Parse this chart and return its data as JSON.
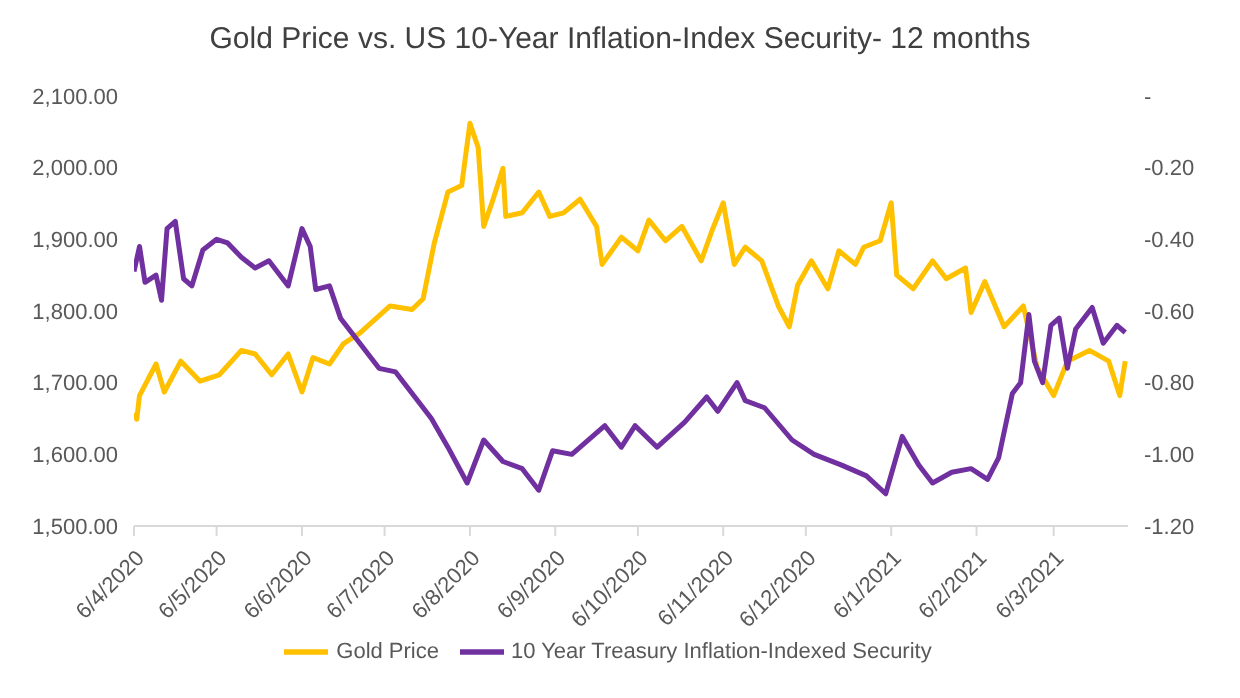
{
  "chart_data": {
    "type": "line",
    "title": "Gold Price vs. US 10-Year Inflation-Index Security- 12 months",
    "xlim": [
      "2020-04-06",
      "2021-04-02"
    ],
    "xticks": [
      {
        "value": "2020-04-06",
        "label": "6/4/2020"
      },
      {
        "value": "2020-05-06",
        "label": "6/5/2020"
      },
      {
        "value": "2020-06-06",
        "label": "6/6/2020"
      },
      {
        "value": "2020-07-06",
        "label": "6/7/2020"
      },
      {
        "value": "2020-08-06",
        "label": "6/8/2020"
      },
      {
        "value": "2020-09-06",
        "label": "6/9/2020"
      },
      {
        "value": "2020-10-06",
        "label": "6/10/2020"
      },
      {
        "value": "2020-11-06",
        "label": "6/11/2020"
      },
      {
        "value": "2020-12-06",
        "label": "6/12/2020"
      },
      {
        "value": "2021-01-06",
        "label": "6/1/2021"
      },
      {
        "value": "2021-02-06",
        "label": "6/2/2021"
      },
      {
        "value": "2021-03-06",
        "label": "6/3/2021"
      }
    ],
    "ylim": [
      1500,
      2100
    ],
    "yticks": [
      {
        "value": 1500,
        "label": "1,500.00"
      },
      {
        "value": 1600,
        "label": "1,600.00"
      },
      {
        "value": 1700,
        "label": "1,700.00"
      },
      {
        "value": 1800,
        "label": "1,800.00"
      },
      {
        "value": 1900,
        "label": "1,900.00"
      },
      {
        "value": 2000,
        "label": "2,000.00"
      },
      {
        "value": 2100,
        "label": "2,100.00"
      }
    ],
    "y2lim": [
      -1.2,
      0
    ],
    "y2ticks": [
      {
        "value": -1.2,
        "label": "-1.20"
      },
      {
        "value": -1,
        "label": "-1.00"
      },
      {
        "value": -0.8,
        "label": "-0.80"
      },
      {
        "value": -0.6,
        "label": "-0.60"
      },
      {
        "value": -0.4,
        "label": "-0.40"
      },
      {
        "value": -0.2,
        "label": "-0.20"
      },
      {
        "value": 0,
        "label": "-"
      }
    ],
    "legend": "bottom",
    "marker": "none",
    "line_style": "solid",
    "series": [
      {
        "name": "Gold Price",
        "color": "#ffc000",
        "x": [
          "2020-04-06",
          "2020-04-07",
          "2020-04-08",
          "2020-04-14",
          "2020-04-17",
          "2020-04-23",
          "2020-04-30",
          "2020-05-07",
          "2020-05-15",
          "2020-05-20",
          "2020-05-26",
          "2020-06-01",
          "2020-06-06",
          "2020-06-10",
          "2020-06-16",
          "2020-06-21",
          "2020-06-27",
          "2020-07-08",
          "2020-07-16",
          "2020-07-20",
          "2020-07-24",
          "2020-07-29",
          "2020-08-03",
          "2020-08-06",
          "2020-08-09",
          "2020-08-11",
          "2020-08-14",
          "2020-08-18",
          "2020-08-19",
          "2020-08-25",
          "2020-08-31",
          "2020-09-04",
          "2020-09-09",
          "2020-09-15",
          "2020-09-21",
          "2020-09-23",
          "2020-09-30",
          "2020-10-06",
          "2020-10-10",
          "2020-10-16",
          "2020-10-22",
          "2020-10-29",
          "2020-11-02",
          "2020-11-06",
          "2020-11-10",
          "2020-11-14",
          "2020-11-20",
          "2020-11-26",
          "2020-11-30",
          "2020-12-03",
          "2020-12-08",
          "2020-12-14",
          "2020-12-18",
          "2020-12-24",
          "2020-12-27",
          "2021-01-02",
          "2021-01-06",
          "2021-01-08",
          "2021-01-14",
          "2021-01-21",
          "2021-01-26",
          "2021-02-02",
          "2021-02-04",
          "2021-02-09",
          "2021-02-16",
          "2021-02-23",
          "2021-02-28",
          "2021-03-06",
          "2021-03-11",
          "2021-03-19",
          "2021-03-26",
          "2021-03-30",
          "2021-04-01"
        ],
        "values": [
          1658,
          1649,
          1682,
          1726,
          1687,
          1730,
          1702,
          1711,
          1745,
          1740,
          1711,
          1740,
          1687,
          1735,
          1726,
          1754,
          1769,
          1807,
          1802,
          1817,
          1894,
          1966,
          1975,
          2062,
          2028,
          1918,
          1951,
          1999,
          1932,
          1937,
          1966,
          1932,
          1937,
          1956,
          1918,
          1865,
          1903,
          1884,
          1927,
          1898,
          1918,
          1870,
          1913,
          1951,
          1865,
          1889,
          1870,
          1807,
          1778,
          1836,
          1870,
          1831,
          1884,
          1865,
          1889,
          1898,
          1951,
          1850,
          1831,
          1870,
          1845,
          1860,
          1798,
          1841,
          1778,
          1807,
          1721,
          1682,
          1730,
          1745,
          1730,
          1682,
          1730
        ]
      },
      {
        "name": "10 Year Treasury Inflation-Indexed Security",
        "color": "#7030a0",
        "axis": "y2",
        "x": [
          "2020-04-06",
          "2020-04-08",
          "2020-04-10",
          "2020-04-14",
          "2020-04-16",
          "2020-04-18",
          "2020-04-21",
          "2020-04-24",
          "2020-04-27",
          "2020-05-01",
          "2020-05-06",
          "2020-05-10",
          "2020-05-15",
          "2020-05-20",
          "2020-05-25",
          "2020-06-01",
          "2020-06-06",
          "2020-06-09",
          "2020-06-11",
          "2020-06-16",
          "2020-06-20",
          "2020-06-27",
          "2020-07-04",
          "2020-07-10",
          "2020-07-17",
          "2020-07-23",
          "2020-07-29",
          "2020-08-05",
          "2020-08-11",
          "2020-08-18",
          "2020-08-25",
          "2020-08-31",
          "2020-09-05",
          "2020-09-12",
          "2020-09-24",
          "2020-09-30",
          "2020-10-05",
          "2020-10-13",
          "2020-10-23",
          "2020-10-31",
          "2020-11-04",
          "2020-11-11",
          "2020-11-14",
          "2020-11-21",
          "2020-12-01",
          "2020-12-09",
          "2020-12-19",
          "2020-12-28",
          "2021-01-04",
          "2021-01-10",
          "2021-01-16",
          "2021-01-21",
          "2021-01-28",
          "2021-02-04",
          "2021-02-10",
          "2021-02-14",
          "2021-02-19",
          "2021-02-22",
          "2021-02-25",
          "2021-02-27",
          "2021-03-02",
          "2021-03-05",
          "2021-03-08",
          "2021-03-11",
          "2021-03-14",
          "2021-03-20",
          "2021-03-24",
          "2021-03-29",
          "2021-04-01"
        ],
        "values": [
          -0.49,
          -0.42,
          -0.52,
          -0.5,
          -0.57,
          -0.37,
          -0.35,
          -0.51,
          -0.53,
          -0.43,
          -0.4,
          -0.41,
          -0.45,
          -0.48,
          -0.46,
          -0.53,
          -0.37,
          -0.42,
          -0.54,
          -0.53,
          -0.62,
          -0.69,
          -0.76,
          -0.77,
          -0.84,
          -0.9,
          -0.98,
          -1.08,
          -0.96,
          -1.02,
          -1.04,
          -1.1,
          -0.99,
          -1.0,
          -0.92,
          -0.98,
          -0.92,
          -0.98,
          -0.91,
          -0.84,
          -0.88,
          -0.8,
          -0.85,
          -0.87,
          -0.96,
          -1.0,
          -1.03,
          -1.06,
          -1.11,
          -0.95,
          -1.03,
          -1.08,
          -1.05,
          -1.04,
          -1.07,
          -1.01,
          -0.83,
          -0.8,
          -0.61,
          -0.74,
          -0.8,
          -0.64,
          -0.62,
          -0.76,
          -0.65,
          -0.59,
          -0.69,
          -0.64,
          -0.66
        ]
      }
    ]
  }
}
